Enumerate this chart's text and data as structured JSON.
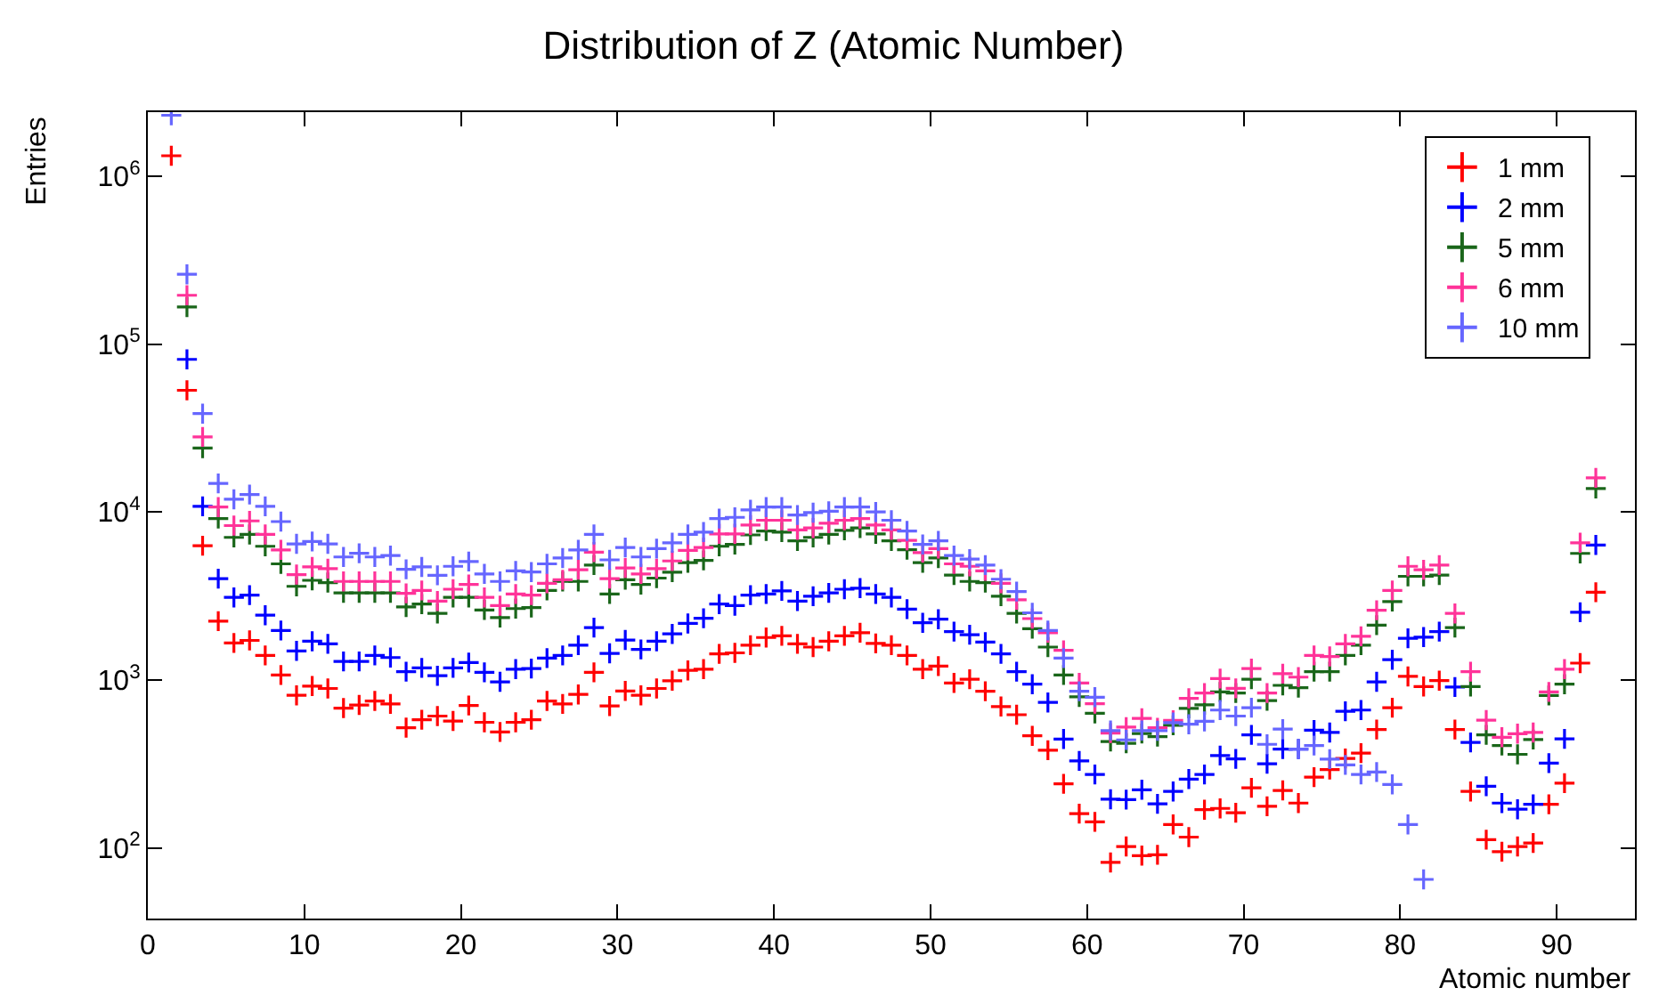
{
  "chart_data": {
    "type": "scatter",
    "title": "Distribution of Z (Atomic Number)",
    "xlabel": "Atomic number",
    "ylabel": "Entries",
    "log": "y",
    "legend": "top right",
    "marker": "cross",
    "xlim": [
      0,
      95
    ],
    "xticks": [
      0,
      10,
      20,
      30,
      40,
      50,
      60,
      70,
      80,
      90
    ],
    "ylim": [
      38,
      2400000
    ],
    "yticks": [
      {
        "value": 100,
        "label": "10$^{2}$"
      },
      {
        "value": 1000,
        "label": "10$^{3}$"
      },
      {
        "value": 10000,
        "label": "10$^{4}$"
      },
      {
        "value": 100000,
        "label": "10$^{5}$"
      },
      {
        "value": 1000000,
        "label": "10$^{6}$"
      }
    ],
    "x": [
      1.5,
      2.5,
      3.5,
      4.5,
      5.5,
      6.5,
      7.5,
      8.5,
      9.5,
      10.5,
      11.5,
      12.5,
      13.5,
      14.5,
      15.5,
      16.5,
      17.5,
      18.5,
      19.5,
      20.5,
      21.5,
      22.5,
      23.5,
      24.5,
      25.5,
      26.5,
      27.5,
      28.5,
      29.5,
      30.5,
      31.5,
      32.5,
      33.5,
      34.5,
      35.5,
      36.5,
      37.5,
      38.5,
      39.5,
      40.5,
      41.5,
      42.5,
      43.5,
      44.5,
      45.5,
      46.5,
      47.5,
      48.5,
      49.5,
      50.5,
      51.5,
      52.5,
      53.5,
      54.5,
      55.5,
      56.5,
      57.5,
      58.5,
      59.5,
      60.5,
      61.5,
      62.5,
      63.5,
      64.5,
      65.5,
      66.5,
      67.5,
      68.5,
      69.5,
      70.5,
      71.5,
      72.5,
      73.5,
      74.5,
      75.5,
      76.5,
      77.5,
      78.5,
      79.5,
      80.5,
      81.5,
      82.5,
      83.5,
      84.5,
      85.5,
      86.5,
      87.5,
      88.5,
      89.5,
      90.5,
      91.5,
      92.5
    ],
    "series": [
      {
        "name": "1 mm",
        "color": "#ff0000",
        "values": [
          1320000,
          53000,
          6300,
          2240,
          1660,
          1720,
          1400,
          1070,
          810,
          920,
          890,
          680,
          710,
          750,
          720,
          520,
          580,
          610,
          570,
          705,
          560,
          490,
          560,
          580,
          750,
          720,
          820,
          1110,
          700,
          860,
          810,
          890,
          990,
          1140,
          1160,
          1430,
          1450,
          1610,
          1790,
          1830,
          1640,
          1570,
          1700,
          1830,
          1910,
          1650,
          1610,
          1400,
          1160,
          1210,
          960,
          1010,
          857,
          695,
          621,
          465,
          382,
          241,
          160,
          143,
          82,
          102,
          90,
          91,
          138,
          116,
          169,
          172,
          162,
          228,
          177,
          220,
          185,
          264,
          293,
          341,
          367,
          507,
          684,
          1050,
          914,
          991,
          507,
          217,
          112,
          95,
          102,
          107,
          182,
          243,
          1260,
          3330
        ]
      },
      {
        "name": "2 mm",
        "color": "#0000ff",
        "values": [
          null,
          81000,
          10800,
          4010,
          3100,
          3200,
          2430,
          1970,
          1490,
          1700,
          1640,
          1290,
          1290,
          1400,
          1360,
          1120,
          1180,
          1060,
          1180,
          1270,
          1110,
          975,
          1160,
          1170,
          1350,
          1400,
          1610,
          2050,
          1440,
          1730,
          1520,
          1700,
          1880,
          2170,
          2330,
          2830,
          2770,
          3200,
          3250,
          3390,
          2950,
          3150,
          3300,
          3470,
          3520,
          3250,
          3100,
          2640,
          2190,
          2300,
          1940,
          1860,
          1680,
          1430,
          1120,
          944,
          735,
          445,
          330,
          274,
          195,
          194,
          222,
          183,
          217,
          257,
          274,
          355,
          339,
          471,
          317,
          388,
          388,
          503,
          487,
          651,
          662,
          975,
          1320,
          1770,
          1800,
          1940,
          908,
          425,
          233,
          185,
          170,
          182,
          320,
          446,
          2530,
          6360
        ]
      },
      {
        "name": "5 mm",
        "color": "#1a661a",
        "values": [
          null,
          166000,
          24000,
          9140,
          7060,
          7350,
          6250,
          4910,
          3610,
          3920,
          3800,
          3300,
          3300,
          3300,
          3300,
          2720,
          2830,
          2490,
          3100,
          3100,
          2610,
          2350,
          2660,
          2700,
          3410,
          3860,
          3860,
          4830,
          3250,
          3950,
          3700,
          4040,
          4380,
          4990,
          5150,
          6250,
          6410,
          7300,
          7710,
          7590,
          6730,
          7060,
          7350,
          7780,
          8030,
          7410,
          6730,
          5960,
          4990,
          5320,
          4210,
          3860,
          3800,
          3150,
          2490,
          2020,
          1570,
          1070,
          793,
          633,
          430,
          420,
          480,
          460,
          537,
          678,
          711,
          849,
          836,
          1010,
          753,
          929,
          900,
          1120,
          1120,
          1400,
          1610,
          2120,
          2930,
          4140,
          4140,
          4210,
          2050,
          914,
          471,
          407,
          361,
          442,
          809,
          944,
          5670,
          13800
        ]
      },
      {
        "name": "6 mm",
        "color": "#ff3399",
        "values": [
          null,
          195000,
          28000,
          10700,
          8300,
          8850,
          7350,
          5950,
          4240,
          4710,
          4600,
          3860,
          3860,
          3860,
          3860,
          3280,
          3410,
          2950,
          3470,
          3700,
          3100,
          2770,
          3250,
          3200,
          3760,
          3950,
          4530,
          5770,
          4010,
          4640,
          4280,
          4600,
          5110,
          5910,
          6150,
          7410,
          7410,
          8360,
          8930,
          8930,
          7830,
          8030,
          8570,
          8930,
          9140,
          8360,
          7830,
          6780,
          5730,
          6050,
          4910,
          4750,
          4460,
          3760,
          3000,
          2320,
          1910,
          1500,
          960,
          723,
          483,
          524,
          591,
          519,
          575,
          778,
          836,
          1020,
          891,
          1170,
          836,
          1090,
          1040,
          1400,
          1380,
          1640,
          1820,
          2600,
          3410,
          4750,
          4530,
          4830,
          2490,
          1120,
          577,
          456,
          479,
          487,
          849,
          1160,
          6560,
          15960
        ]
      },
      {
        "name": "10 mm",
        "color": "#6666ff",
        "values": [
          2300000,
          260000,
          38500,
          14800,
          11900,
          12700,
          10800,
          8770,
          6460,
          6670,
          6460,
          5400,
          5680,
          5400,
          5500,
          4560,
          4710,
          4200,
          4750,
          5070,
          4280,
          3860,
          4460,
          4390,
          4910,
          5320,
          5950,
          7350,
          5190,
          6150,
          5400,
          6050,
          6560,
          7350,
          7590,
          9140,
          9290,
          10300,
          10700,
          10700,
          9600,
          9910,
          10100,
          10700,
          10700,
          10000,
          8930,
          7710,
          6410,
          6730,
          5500,
          5240,
          4830,
          3980,
          3360,
          2510,
          1970,
          1350,
          857,
          790,
          500,
          440,
          500,
          499,
          558,
          545,
          567,
          662,
          610,
          684,
          414,
          510,
          388,
          407,
          338,
          312,
          274,
          283,
          239,
          138,
          65,
          null,
          null,
          null,
          null,
          null,
          null,
          null,
          null,
          null,
          null,
          null
        ]
      }
    ]
  }
}
